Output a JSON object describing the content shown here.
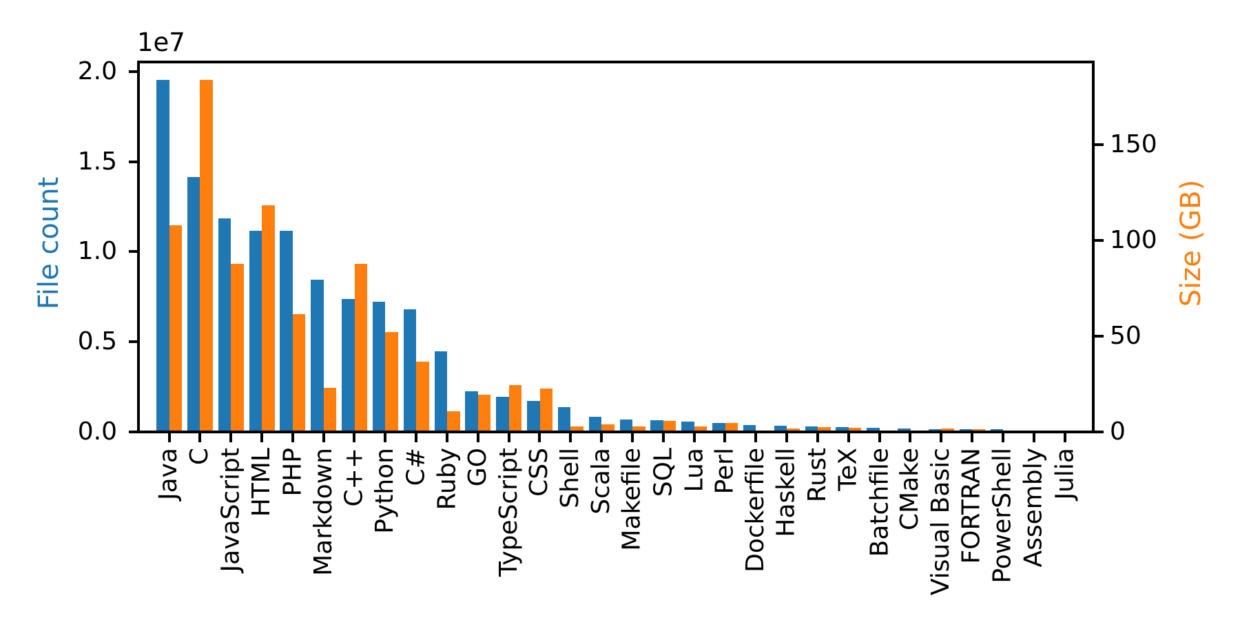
{
  "chart_data": {
    "type": "bar",
    "title": "",
    "grid": false,
    "legend": "none",
    "categories": [
      "Java",
      "C",
      "JavaScript",
      "HTML",
      "PHP",
      "Markdown",
      "C++",
      "Python",
      "C#",
      "Ruby",
      "GO",
      "TypeScript",
      "CSS",
      "Shell",
      "Scala",
      "Makefile",
      "SQL",
      "Lua",
      "Perl",
      "Dockerfile",
      "Haskell",
      "Rust",
      "TeX",
      "Batchfile",
      "CMake",
      "Visual Basic",
      "FORTRAN",
      "PowerShell",
      "Assembly",
      "Julia"
    ],
    "series": [
      {
        "name": "File count",
        "axis": "left",
        "color": "#1f77b4",
        "values": [
          19548190,
          14143113,
          11839883,
          11178557,
          11177610,
          8464626,
          7380520,
          7226626,
          6811652,
          4473331,
          2265436,
          1940406,
          1734406,
          1385648,
          835755,
          679430,
          656671,
          578554,
          497949,
          366505,
          340623,
          322431,
          251015,
          236945,
          175282,
          155652,
          142038,
          136846,
          82905,
          58317
        ]
      },
      {
        "name": "Size (GB)",
        "axis": "right",
        "color": "#ff7f0e",
        "values": [
          107.7,
          183.83,
          87.82,
          118.12,
          61.41,
          23.09,
          87.73,
          52.03,
          36.83,
          10.95,
          19.28,
          24.59,
          22.67,
          3.01,
          3.87,
          2.92,
          5.67,
          2.81,
          4.7,
          0.71,
          1.85,
          2.68,
          2.15,
          0.7,
          0.54,
          1.91,
          1.62,
          0.69,
          0.78,
          0.29
        ]
      }
    ],
    "left_axis": {
      "label": "File count",
      "label_color": "#1f77b4",
      "offset_text": "1e7",
      "tick_labels": [
        "0.0",
        "0.5",
        "1.0",
        "1.5",
        "2.0"
      ],
      "tick_values": [
        0,
        5000000,
        10000000,
        15000000,
        20000000
      ],
      "ylim": [
        0,
        20525600
      ]
    },
    "right_axis": {
      "label": "Size (GB)",
      "label_color": "#ff7f0e",
      "tick_labels": [
        "0",
        "50",
        "100",
        "150"
      ],
      "tick_values": [
        0,
        50,
        100,
        150
      ],
      "ylim": [
        0,
        193
      ]
    }
  }
}
